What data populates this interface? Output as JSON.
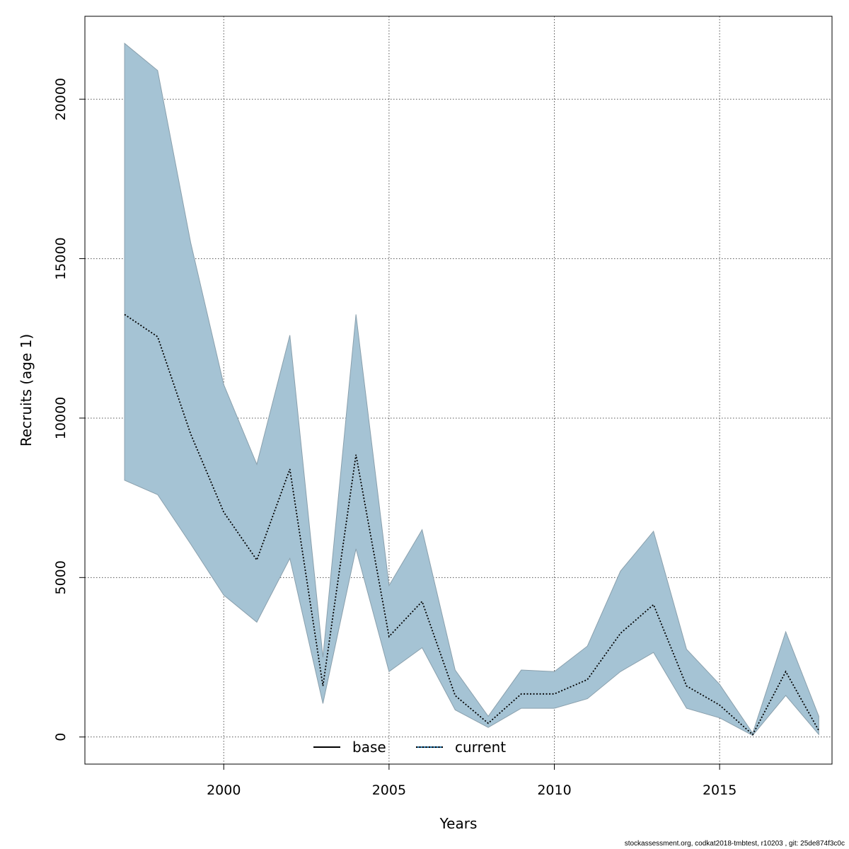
{
  "chart_data": {
    "type": "line",
    "xlabel": "Years",
    "ylabel": "Recruits (age 1)",
    "xlim": [
      1995.8,
      2018.4
    ],
    "ylim": [
      -850,
      22600
    ],
    "xticks": [
      2000,
      2005,
      2010,
      2015
    ],
    "yticks": [
      0,
      5000,
      10000,
      15000,
      20000
    ],
    "grid": true,
    "legend": {
      "placement": "bottom-center",
      "entries": [
        {
          "name": "base",
          "style": "solid",
          "color": "#000000"
        },
        {
          "name": "current",
          "style": "dotted",
          "color": "#000000",
          "color2": "#1f6fa5"
        }
      ]
    },
    "band_color": "#a5c3d4",
    "band_edge_color": "#8aa0ad",
    "x": [
      1997,
      1998,
      1999,
      2000,
      2001,
      2002,
      2003,
      2004,
      2005,
      2006,
      2007,
      2008,
      2009,
      2010,
      2011,
      2012,
      2013,
      2014,
      2015,
      2016,
      2017,
      2018
    ],
    "upper": [
      21750,
      20900,
      15500,
      11050,
      8550,
      12600,
      2500,
      13250,
      4750,
      6500,
      2100,
      650,
      2100,
      2050,
      2850,
      5200,
      6450,
      2750,
      1650,
      120,
      3300,
      650
    ],
    "lower": [
      8050,
      7600,
      6050,
      4450,
      3600,
      5600,
      1050,
      5900,
      2050,
      2800,
      850,
      300,
      900,
      900,
      1200,
      2050,
      2650,
      900,
      600,
      50,
      1300,
      80
    ],
    "series": [
      {
        "name": "base",
        "values": [
          13250,
          12550,
          9500,
          7050,
          5550,
          8400,
          1600,
          8850,
          3150,
          4250,
          1300,
          430,
          1350,
          1350,
          1800,
          3250,
          4150,
          1600,
          1000,
          75,
          2050,
          200
        ]
      },
      {
        "name": "current",
        "values": [
          13250,
          12550,
          9500,
          7050,
          5550,
          8400,
          1600,
          8850,
          3150,
          4250,
          1300,
          430,
          1350,
          1350,
          1800,
          3250,
          4150,
          1600,
          1000,
          75,
          2050,
          200
        ]
      }
    ]
  },
  "footer": "stockassessment.org, codkat2018-tmbtest, r10203 , git: 25de874f3c0c"
}
